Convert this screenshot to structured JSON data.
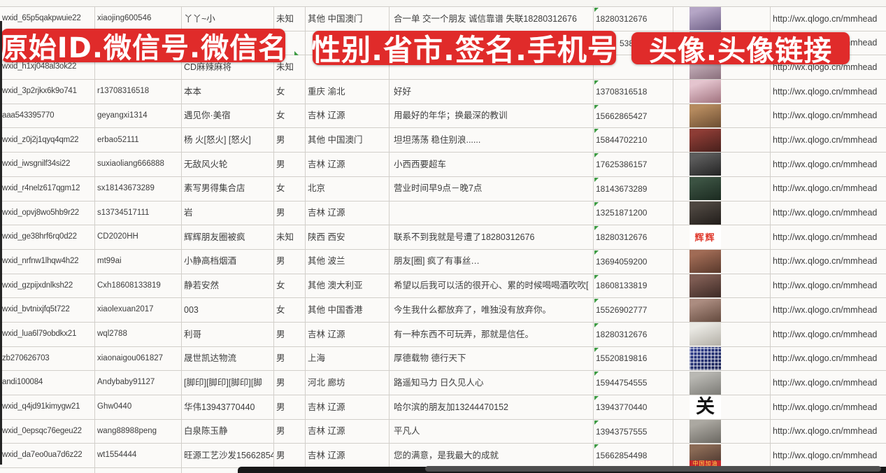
{
  "theme": {
    "banner_color": "#e02b2a",
    "banner_text_color": "#ffffff",
    "flag_color": "#3e9b44"
  },
  "banners": [
    {
      "label": "原始ID.微信号.微信名"
    },
    {
      "label": "性别.省市.签名.手机号"
    },
    {
      "label": "头像.头像链接"
    }
  ],
  "rows": [
    {
      "id": "wxid_65p5qakpwuie22",
      "wechat_id": "xiaojing600546",
      "name": "丫丫~小",
      "gender": "未知",
      "region": "其他 中国澳门",
      "signature": "合一单 交一个朋友 诚信靠谱 失联18280312676",
      "phone": "18280312676",
      "url": "http://wx.qlogo.cn/mmhead",
      "avatar": {
        "kind": "photo",
        "c1": "#b5a6c6",
        "c2": "#6e5f85"
      }
    },
    {
      "id": "",
      "wechat_id": "",
      "name": "",
      "gender": "",
      "region": "",
      "signature": "",
      "phone": "5386",
      "url": "http://wx.qlogo.cn/mmhead",
      "avatar": {
        "kind": "photo",
        "c1": "#a8bcd4",
        "c2": "#667a94"
      }
    },
    {
      "id": "wxid_h1xj048al3ok22",
      "wechat_id": "",
      "name": "CD麻辣麻将",
      "gender": "未知",
      "region": "",
      "signature": "",
      "phone": "",
      "url": "http://wx.qlogo.cn/mmhead",
      "avatar": {
        "kind": "photo",
        "c1": "#c9b4bf",
        "c2": "#8a6f7c"
      }
    },
    {
      "id": "wxid_3p2rjkx6k9o741",
      "wechat_id": "r13708316518",
      "name": "本本",
      "gender": "女",
      "region": "重庆 渝北",
      "signature": "好好",
      "phone": "13708316518",
      "url": "http://wx.qlogo.cn/mmhead",
      "avatar": {
        "kind": "photo",
        "c1": "#e4c4ce",
        "c2": "#a1737f"
      }
    },
    {
      "id": "aaa543395770",
      "wechat_id": "geyangxi1314",
      "name": "遇见你·美宿",
      "gender": "女",
      "region": "吉林 辽源",
      "signature": "用最好的年华；换最深的教训",
      "phone": "15662865427",
      "url": "http://wx.qlogo.cn/mmhead",
      "avatar": {
        "kind": "photo",
        "c1": "#b58a5e",
        "c2": "#6d4e33"
      }
    },
    {
      "id": "wxid_z0j2j1qyq4qm22",
      "wechat_id": "erbao52111",
      "name": "杨 火[怒火] [怒火]",
      "gender": "男",
      "region": "其他 中国澳门",
      "signature": "坦坦荡荡 稳住别浪......",
      "phone": "15844702210",
      "url": "http://wx.qlogo.cn/mmhead",
      "avatar": {
        "kind": "photo",
        "c1": "#8d3c35",
        "c2": "#47201c"
      }
    },
    {
      "id": "wxid_iwsgnilf34si22",
      "wechat_id": "suxiaoliang666888",
      "name": "无敌风火轮",
      "gender": "男",
      "region": "吉林 辽源",
      "signature": "小西西要超车",
      "phone": "17625386157",
      "url": "http://wx.qlogo.cn/mmhead",
      "avatar": {
        "kind": "photo",
        "c1": "#5c5c5c",
        "c2": "#232323"
      }
    },
    {
      "id": "wxid_r4nelz617qgm12",
      "wechat_id": "sx18143673289",
      "name": "素写男得集合店",
      "gender": "女",
      "region": "北京",
      "signature": "营业时间早9点－晚7点",
      "phone": "18143673289",
      "url": "http://wx.qlogo.cn/mmhead",
      "avatar": {
        "kind": "photo",
        "c1": "#3b5242",
        "c2": "#1b2a20"
      }
    },
    {
      "id": "wxid_opvj8wo5hb9r22",
      "wechat_id": "s13734517111",
      "name": "岩",
      "gender": "男",
      "region": "吉林 辽源",
      "signature": "",
      "phone": "13251871200",
      "url": "http://wx.qlogo.cn/mmhead",
      "avatar": {
        "kind": "photo",
        "c1": "#4d4640",
        "c2": "#211d1a"
      }
    },
    {
      "id": "wxid_ge38hrf6rq0d22",
      "wechat_id": "CD2020HH",
      "name": "辉辉朋友圈被疯",
      "gender": "未知",
      "region": "陕西 西安",
      "signature": "联系不到我就是号遭了18280312676",
      "phone": "18280312676",
      "url": "http://wx.qlogo.cn/mmhead",
      "avatar": {
        "kind": "text",
        "bg": "#ffffff",
        "text": "辉辉",
        "tc": "#e03a2e"
      }
    },
    {
      "id": "wxid_nrfnw1lhqw4h22",
      "wechat_id": "mt99ai",
      "name": "小静高档烟酒",
      "gender": "男",
      "region": "其他 波兰",
      "signature": "朋友[圈] 疯了有事丝…",
      "phone": "13694059200",
      "url": "http://wx.qlogo.cn/mmhead",
      "avatar": {
        "kind": "photo",
        "c1": "#a06b55",
        "c2": "#59392c"
      }
    },
    {
      "id": "wxid_gzpijxdnlksh22",
      "wechat_id": "Cxh18608133819",
      "name": "静若安然",
      "gender": "女",
      "region": "其他 澳大利亚",
      "signature": "希望以后我可以活的很开心、累的时候喝喝酒吹吹[",
      "phone": "18608133819",
      "url": "http://wx.qlogo.cn/mmhead",
      "avatar": {
        "kind": "photo",
        "c1": "#7d5b52",
        "c2": "#3d2a25"
      }
    },
    {
      "id": "wxid_bvtnixjfq5t722",
      "wechat_id": "xiaolexuan2017",
      "name": "003",
      "gender": "女",
      "region": "其他 中国香港",
      "signature": "今生我什么都放弃了，唯独没有放弃你。",
      "phone": "15526902777",
      "url": "http://wx.qlogo.cn/mmhead",
      "avatar": {
        "kind": "photo",
        "c1": "#ab8c80",
        "c2": "#644a3e"
      }
    },
    {
      "id": "wxid_lua6l79obdkx21",
      "wechat_id": "wql2788",
      "name": "利哥",
      "gender": "男",
      "region": "吉林 辽源",
      "signature": "有一种东西不可玩弄，那就是信任。",
      "phone": "18280312676",
      "url": "http://wx.qlogo.cn/mmhead",
      "avatar": {
        "kind": "photo",
        "c1": "#eae9e4",
        "c2": "#b3afa6"
      }
    },
    {
      "id": "zb270626703",
      "wechat_id": "xiaonaigou061827",
      "name": "晟世凯达物流",
      "gender": "男",
      "region": "上海",
      "signature": "厚德载物 德行天下",
      "phone": "15520819816",
      "url": "http://wx.qlogo.cn/mmhead",
      "avatar": {
        "kind": "qr",
        "c1": "#2e3d91",
        "c2": "#141d4d"
      }
    },
    {
      "id": "andi100084",
      "wechat_id": "Andybaby91127",
      "name": "[脚印][脚印][脚印][脚",
      "gender": "男",
      "region": "河北 廊坊",
      "signature": "路遥知马力 日久见人心",
      "phone": "15944754555",
      "url": "http://wx.qlogo.cn/mmhead",
      "avatar": {
        "kind": "photo",
        "c1": "#b9b8b3",
        "c2": "#7c7b76"
      }
    },
    {
      "id": "wxid_q4jd91kimygw21",
      "wechat_id": "Ghw0440",
      "name": "华伟13943770440",
      "gender": "男",
      "region": "吉林 辽源",
      "signature": "哈尔滨的朋友加13244470152",
      "phone": "13943770440",
      "url": "http://wx.qlogo.cn/mmhead",
      "avatar": {
        "kind": "text",
        "bg": "#ffffff",
        "text": "关",
        "tc": "#141414"
      }
    },
    {
      "id": "wxid_0epsqc76egeu22",
      "wechat_id": "wang88988peng",
      "name": "白泉陈玉静",
      "gender": "男",
      "region": "吉林 辽源",
      "signature": "平凡人",
      "phone": "13943757555",
      "url": "http://wx.qlogo.cn/mmhead",
      "avatar": {
        "kind": "photo",
        "c1": "#aba8a1",
        "c2": "#6b6862"
      }
    },
    {
      "id": "wxid_da7eo0ua7d6z22",
      "wechat_id": "wt1554444",
      "name": "旺源工艺沙发15662854",
      "gender": "男",
      "region": "吉林 辽源",
      "signature": "您的满意，是我最大的成就",
      "phone": "15662854498",
      "url": "http://wx.qlogo.cn/mmhead",
      "avatar": {
        "kind": "band",
        "c1": "#8a6a55",
        "c2": "#44302a",
        "band": "中国加油",
        "band_bg": "#c4292b",
        "band_tc": "#ffd44d"
      }
    },
    {
      "id": "",
      "wechat_id": "",
      "name": "",
      "gender": "",
      "region": "",
      "signature": "",
      "phone": "",
      "url": "",
      "avatar": {
        "kind": "photo",
        "c1": "#c4d6e6",
        "c2": "#7e96ad"
      }
    }
  ]
}
